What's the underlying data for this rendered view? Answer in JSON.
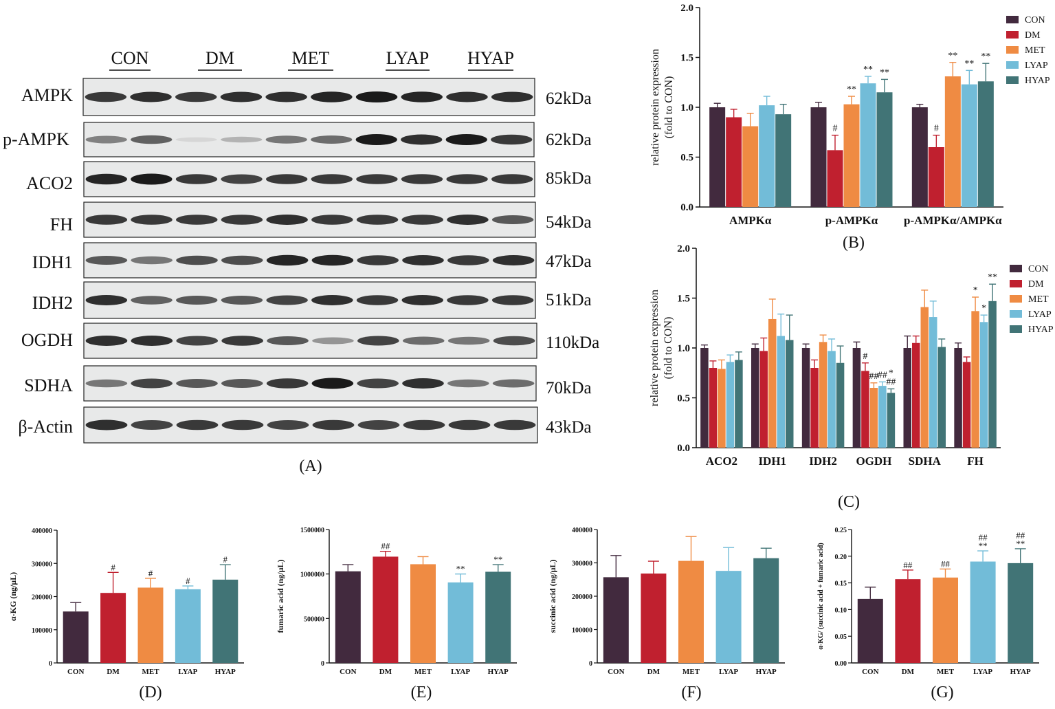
{
  "colors": {
    "CON": "#422a3e",
    "DM": "#c0202f",
    "MET": "#ef8b43",
    "LYAP": "#72bcd8",
    "HYAP": "#417476"
  },
  "groups": [
    "CON",
    "DM",
    "MET",
    "LYAP",
    "HYAP"
  ],
  "western_blot": {
    "panel_label": "(A)",
    "lane_headers": [
      "CON",
      "DM",
      "MET",
      "LYAP",
      "HYAP"
    ],
    "proteins": [
      {
        "name": "AMPK",
        "kda": "62kDa",
        "intensity": [
          0.85,
          0.9,
          0.85,
          0.9,
          0.9,
          0.95,
          1.0,
          0.95,
          0.9,
          0.9
        ]
      },
      {
        "name": "p-AMPK",
        "kda": "62kDa",
        "intensity": [
          0.5,
          0.65,
          0.08,
          0.25,
          0.55,
          0.6,
          1.0,
          0.9,
          1.0,
          0.85
        ]
      },
      {
        "name": "ACO2",
        "kda": "85kDa",
        "intensity": [
          0.95,
          1.0,
          0.85,
          0.8,
          0.85,
          0.85,
          0.85,
          0.85,
          0.85,
          0.85
        ]
      },
      {
        "name": "FH",
        "kda": "54kDa",
        "intensity": [
          0.85,
          0.85,
          0.85,
          0.85,
          0.9,
          0.85,
          0.85,
          0.85,
          0.9,
          0.7
        ]
      },
      {
        "name": "IDH1",
        "kda": "47kDa",
        "intensity": [
          0.7,
          0.55,
          0.75,
          0.75,
          0.95,
          0.95,
          0.85,
          0.9,
          0.85,
          0.9
        ]
      },
      {
        "name": "IDH2",
        "kda": "51kDa",
        "intensity": [
          0.9,
          0.65,
          0.7,
          0.7,
          0.8,
          0.9,
          0.85,
          0.9,
          0.85,
          0.85
        ]
      },
      {
        "name": "OGDH",
        "kda": "110kDa",
        "intensity": [
          0.9,
          0.9,
          0.8,
          0.85,
          0.7,
          0.4,
          0.8,
          0.6,
          0.55,
          0.75
        ]
      },
      {
        "name": "SDHA",
        "kda": "70kDa",
        "intensity": [
          0.55,
          0.8,
          0.7,
          0.7,
          0.85,
          1.0,
          0.8,
          0.9,
          0.55,
          0.6
        ]
      },
      {
        "name": "β-Actin",
        "kda": "43kDa",
        "intensity": [
          0.9,
          0.8,
          0.85,
          0.85,
          0.8,
          0.85,
          0.8,
          0.85,
          0.85,
          0.85
        ]
      }
    ]
  },
  "chart_data": [
    {
      "id": "B",
      "type": "bar",
      "panel_label": "(B)",
      "categories": [
        "AMPKα",
        "p-AMPKα",
        "p-AMPKα/AMPKα"
      ],
      "ylabel_line1": "relative protein expression",
      "ylabel_line2": "(fold to CON)",
      "ylim": [
        0,
        2.0
      ],
      "yticks": [
        "0.0",
        "0.5",
        "1.0",
        "1.5",
        "2.0"
      ],
      "legend_position": "top-right",
      "series": [
        {
          "name": "CON",
          "values": [
            1.0,
            1.0,
            1.0
          ],
          "err": [
            0.04,
            0.05,
            0.03
          ],
          "annot": [
            "",
            "",
            ""
          ]
        },
        {
          "name": "DM",
          "values": [
            0.9,
            0.57,
            0.6
          ],
          "err": [
            0.08,
            0.15,
            0.12
          ],
          "annot": [
            "",
            "#",
            "#"
          ]
        },
        {
          "name": "MET",
          "values": [
            0.81,
            1.03,
            1.31
          ],
          "err": [
            0.13,
            0.08,
            0.14
          ],
          "annot": [
            "",
            "**",
            "**"
          ]
        },
        {
          "name": "LYAP",
          "values": [
            1.02,
            1.24,
            1.23
          ],
          "err": [
            0.09,
            0.07,
            0.14
          ],
          "annot": [
            "",
            "**",
            "**"
          ]
        },
        {
          "name": "HYAP",
          "values": [
            0.93,
            1.15,
            1.26
          ],
          "err": [
            0.1,
            0.13,
            0.18
          ],
          "annot": [
            "",
            "**",
            "**"
          ]
        }
      ]
    },
    {
      "id": "C",
      "type": "bar",
      "panel_label": "(C)",
      "categories": [
        "ACO2",
        "IDH1",
        "IDH2",
        "OGDH",
        "SDHA",
        "FH"
      ],
      "ylabel_line1": "relative protein expression",
      "ylabel_line2": "(fold to CON)",
      "ylim": [
        0,
        2.0
      ],
      "yticks": [
        "0.0",
        "0.5",
        "1.0",
        "1.5",
        "2.0"
      ],
      "legend_position": "top-right",
      "series": [
        {
          "name": "CON",
          "values": [
            1.0,
            1.0,
            1.0,
            1.0,
            1.0,
            1.0
          ],
          "err": [
            0.03,
            0.04,
            0.04,
            0.06,
            0.12,
            0.05
          ],
          "annot": [
            "",
            "",
            "",
            "",
            "",
            ""
          ]
        },
        {
          "name": "DM",
          "values": [
            0.8,
            0.97,
            0.8,
            0.77,
            1.05,
            0.86
          ],
          "err": [
            0.07,
            0.13,
            0.08,
            0.08,
            0.07,
            0.05
          ],
          "annot": [
            "",
            "",
            "",
            "#",
            "",
            ""
          ]
        },
        {
          "name": "MET",
          "values": [
            0.79,
            1.29,
            1.06,
            0.6,
            1.41,
            1.37
          ],
          "err": [
            0.09,
            0.2,
            0.07,
            0.05,
            0.17,
            0.14
          ],
          "annot": [
            "",
            "",
            "",
            "##",
            "",
            "*"
          ]
        },
        {
          "name": "LYAP",
          "values": [
            0.86,
            1.12,
            0.97,
            0.62,
            1.31,
            1.26
          ],
          "err": [
            0.07,
            0.22,
            0.12,
            0.04,
            0.16,
            0.07
          ],
          "annot": [
            "",
            "",
            "",
            "##",
            "",
            "*"
          ]
        },
        {
          "name": "HYAP",
          "values": [
            0.88,
            1.08,
            0.85,
            0.55,
            1.01,
            1.47
          ],
          "err": [
            0.08,
            0.25,
            0.17,
            0.04,
            0.08,
            0.17
          ],
          "annot": [
            "",
            "",
            "",
            "*|##",
            "",
            "**"
          ]
        }
      ]
    },
    {
      "id": "D",
      "type": "bar",
      "panel_label": "(D)",
      "categories": [
        "CON",
        "DM",
        "MET",
        "LYAP",
        "HYAP"
      ],
      "ylabel": "α-KG (ng/μL)",
      "ylim": [
        0,
        400000
      ],
      "yticks": [
        "0",
        "100000",
        "200000",
        "300000",
        "400000"
      ],
      "values": [
        155000,
        211000,
        227000,
        222000,
        251000
      ],
      "err": [
        27000,
        62000,
        28000,
        10000,
        45000
      ],
      "annot": [
        "",
        "#",
        "#",
        "#",
        "#"
      ]
    },
    {
      "id": "E",
      "type": "bar",
      "panel_label": "(E)",
      "categories": [
        "CON",
        "DM",
        "MET",
        "LYAP",
        "HYAP"
      ],
      "ylabel": "fumaric acid (ng/μL)",
      "ylim": [
        0,
        1500000
      ],
      "yticks": [
        "0",
        "500000",
        "1000000",
        "1500000"
      ],
      "values": [
        1030000,
        1195000,
        1110000,
        905000,
        1025000
      ],
      "err": [
        75000,
        60000,
        85000,
        95000,
        80000
      ],
      "annot": [
        "",
        "##",
        "",
        "**",
        "**"
      ]
    },
    {
      "id": "F",
      "type": "bar",
      "panel_label": "(F)",
      "categories": [
        "CON",
        "DM",
        "MET",
        "LYAP",
        "HYAP"
      ],
      "ylabel": "succinic acid (ng/μL)",
      "ylim": [
        0,
        400000
      ],
      "yticks": [
        "0",
        "100000",
        "200000",
        "300000",
        "400000"
      ],
      "values": [
        257000,
        268000,
        306000,
        276000,
        314000
      ],
      "err": [
        65000,
        37000,
        73000,
        70000,
        30000
      ],
      "annot": [
        "",
        "",
        "",
        "",
        ""
      ]
    },
    {
      "id": "G",
      "type": "bar",
      "panel_label": "(G)",
      "categories": [
        "CON",
        "DM",
        "MET",
        "LYAP",
        "HYAP"
      ],
      "ylabel": "α-KG/ (succinic acid + fumaric acid)",
      "ylim": [
        0,
        0.25
      ],
      "yticks": [
        "0.00",
        "0.05",
        "0.10",
        "0.15",
        "0.20",
        "0.25"
      ],
      "values": [
        0.12,
        0.157,
        0.16,
        0.19,
        0.187
      ],
      "err": [
        0.022,
        0.017,
        0.016,
        0.02,
        0.027
      ],
      "annot": [
        "",
        "##",
        "##",
        "##|**",
        "##|**"
      ]
    }
  ]
}
